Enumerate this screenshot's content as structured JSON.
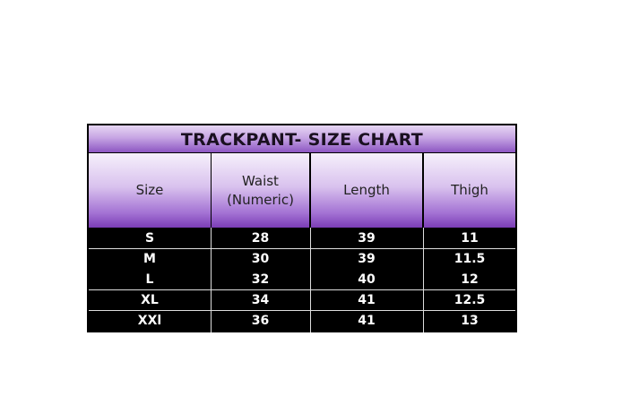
{
  "title": "TRACKPANT- SIZE CHART",
  "columns": [
    "Size",
    "Waist\n(Numeric)",
    "Length",
    "Thigh"
  ],
  "rows": [
    [
      "S",
      "28",
      "39",
      "11"
    ],
    [
      "M",
      "30",
      "39",
      "11.5"
    ],
    [
      "L",
      "32",
      "40",
      "12"
    ],
    [
      "XL",
      "34",
      "41",
      "12.5"
    ],
    [
      "XXl",
      "36",
      "41",
      "13"
    ]
  ],
  "colors": {
    "header_purple": "#7b3db6",
    "body_bg": "#000000",
    "body_text": "#ffffff"
  }
}
